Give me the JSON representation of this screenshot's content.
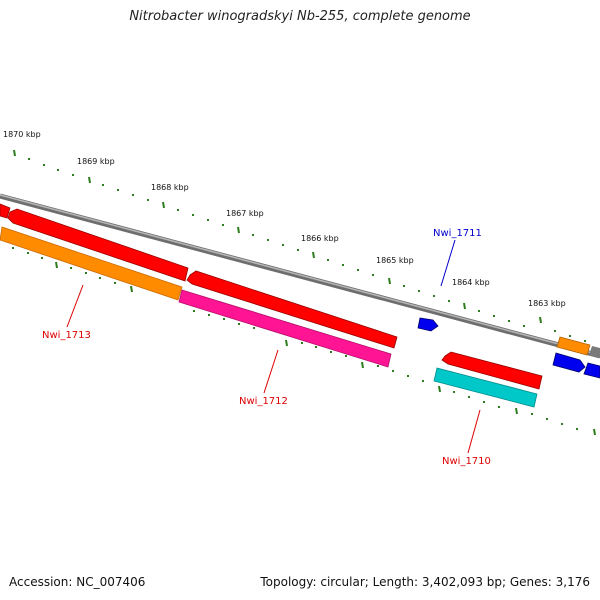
{
  "title": "Nitrobacter winogradskyi Nb-255, complete genome",
  "accession": "Accession: NC_007406",
  "topology": "Topology: circular; Length: 3,402,093 bp; Genes: 3,176",
  "colors": {
    "forward": "#ff0000",
    "reverse": "#ff0000",
    "backbone": "#808080",
    "tick": "#2d7d1e",
    "orange": "#ff8c00",
    "pink": "#ff1493",
    "cyan": "#00c8c8",
    "blue": "#0000ee",
    "label_red": "#dd0000",
    "label_blue": "#0000cc"
  },
  "scale_labels": [
    "1870 kbp",
    "1869 kbp",
    "1868 kbp",
    "1867 kbp",
    "1866 kbp",
    "1865 kbp",
    "1864 kbp",
    "1863 kbp"
  ],
  "genes": [
    {
      "id": "Nwi_1713",
      "type": "gene_label"
    },
    {
      "id": "Nwi_1712",
      "type": "gene_label"
    },
    {
      "id": "Nwi_1711",
      "type": "gene_label"
    },
    {
      "id": "Nwi_1710",
      "type": "gene_label"
    }
  ]
}
